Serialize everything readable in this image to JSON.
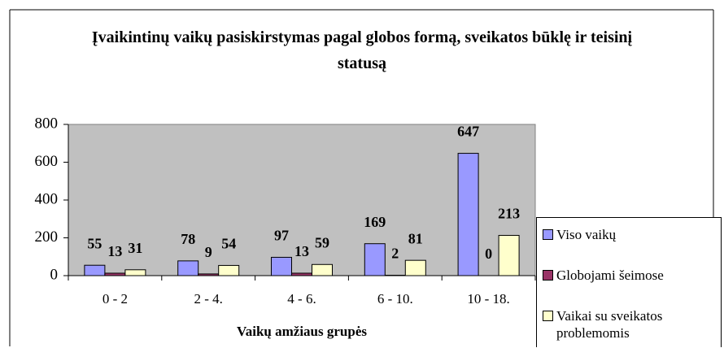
{
  "chart_data": {
    "type": "bar",
    "title": "Įvaikintinų vaikų pasiskirstymas pagal globos formą, sveikatos būklę ir teisinį statusą",
    "x_label": "Vaikų amžiaus grupės",
    "categories": [
      "0 - 2",
      "2 - 4.",
      "4 - 6.",
      "6 - 10.",
      "10 - 18."
    ],
    "series": [
      {
        "name": "Viso vaikų",
        "color": "#9999ff",
        "values": [
          55,
          78,
          97,
          169,
          647
        ]
      },
      {
        "name": "Globojami šeimose",
        "color": "#993366",
        "values": [
          13,
          9,
          13,
          2,
          0
        ]
      },
      {
        "name": "Vaikai su sveikatos problemomis",
        "color": "#ffffcc",
        "values": [
          31,
          54,
          59,
          81,
          213
        ]
      }
    ],
    "ylim": [
      0,
      800
    ],
    "yticks": [
      0,
      200,
      400,
      600,
      800
    ],
    "plot_color": "#c0c0c0",
    "legend": "right"
  }
}
